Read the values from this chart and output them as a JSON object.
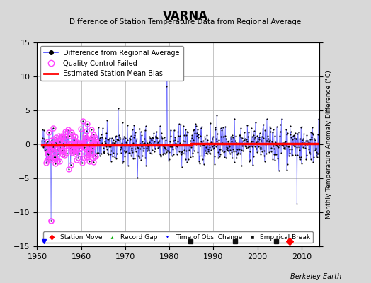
{
  "title": "VARNA",
  "subtitle": "Difference of Station Temperature Data from Regional Average",
  "ylabel_right": "Monthly Temperature Anomaly Difference (°C)",
  "xlim": [
    1950,
    2014
  ],
  "ylim": [
    -15,
    15
  ],
  "yticks": [
    -15,
    -10,
    -5,
    0,
    5,
    10,
    15
  ],
  "xticks": [
    1950,
    1960,
    1970,
    1980,
    1990,
    2000,
    2010
  ],
  "background_color": "#d8d8d8",
  "plot_bg_color": "#ffffff",
  "grid_color": "#bbbbbb",
  "line_color": "#4444ff",
  "line_marker_color": "#000000",
  "qc_marker_color": "#ff44ff",
  "bias_line_color": "#ff0000",
  "station_move_color": "#ff0000",
  "record_gap_color": "#00aa00",
  "tobs_color": "#0000ff",
  "empirical_break_color": "#111111",
  "watermark": "Berkeley Earth",
  "seed": 42,
  "n_data_points": 756,
  "start_year": 1951.0,
  "end_year": 2013.9,
  "bias_y_early": -0.15,
  "bias_y_late": 0.15,
  "bias_break": 1985.0,
  "station_moves": [
    {
      "x": 2007.3
    }
  ],
  "empirical_breaks": [
    {
      "x": 1984.8
    },
    {
      "x": 1995.0
    },
    {
      "x": 2004.3
    }
  ],
  "tobs_changes": [
    {
      "x": 1951.5
    }
  ],
  "spike_year_1": 1979.5,
  "spike_val_1": 11.5,
  "outlier_year": 1953.2,
  "outlier_val": -11.2,
  "big_drop_year": 2009.0,
  "big_drop_val": -8.7,
  "big_spike_2": 1994.8,
  "big_spike_2_val": 3.8,
  "qc_start": 1952.0,
  "qc_end": 1963.5,
  "qc_n": 45
}
